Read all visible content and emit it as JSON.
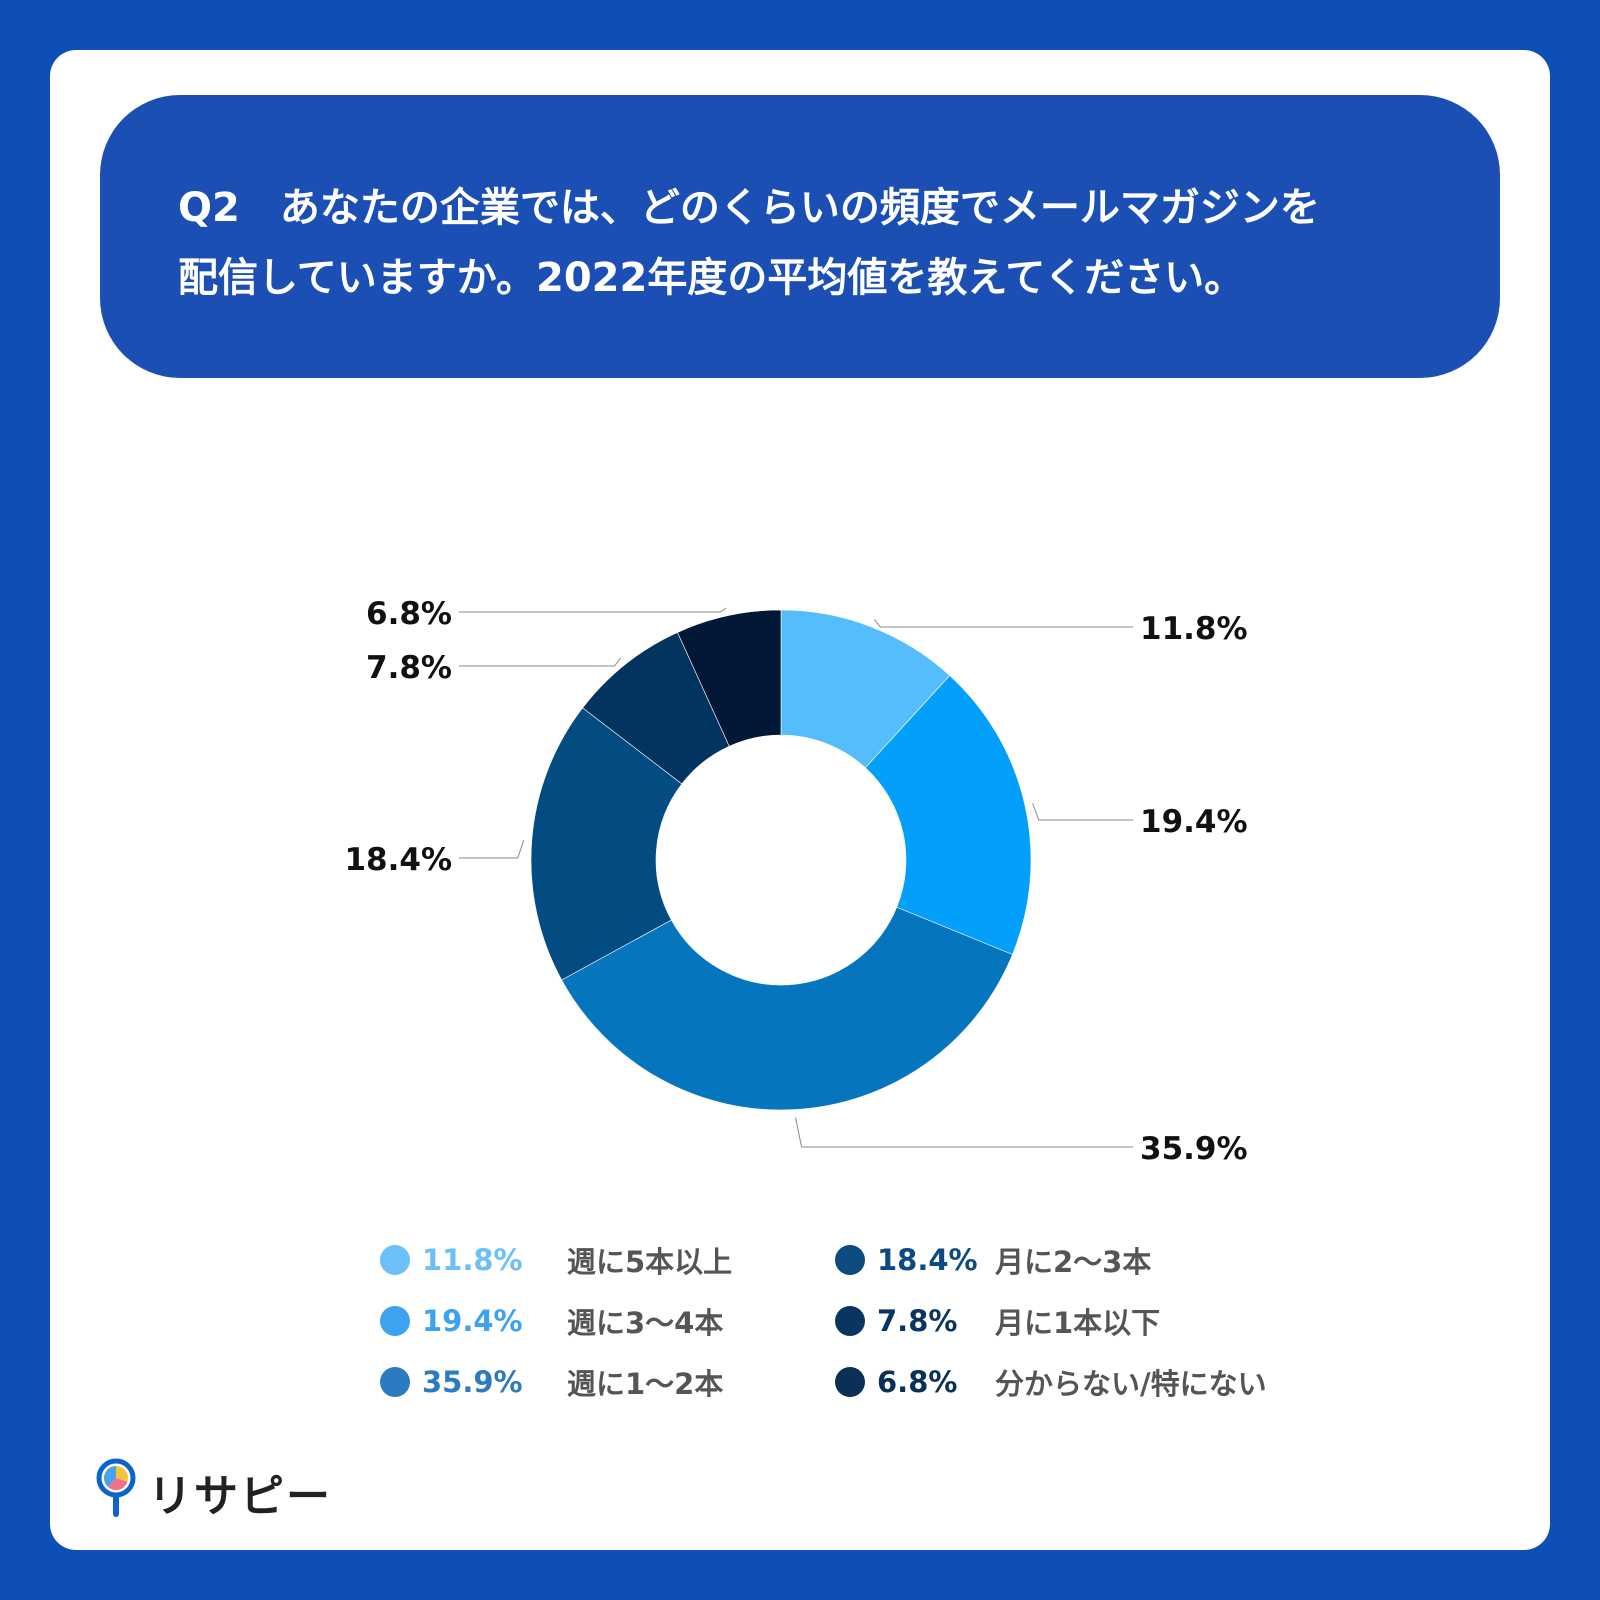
{
  "question": {
    "line1": "Q2　あなたの企業では、どのくらいの頻度でメールマガジンを",
    "line2": "配信していますか。2022年度の平均値を教えてください。"
  },
  "chart_data": {
    "type": "pie",
    "donut": true,
    "slices": [
      {
        "name": "週に5本以上",
        "value": 11.8,
        "label": "11.8%",
        "color": "#55bdfb"
      },
      {
        "name": "週に3〜4本",
        "value": 19.4,
        "label": "19.4%",
        "color": "#02a0fb"
      },
      {
        "name": "週に1〜2本",
        "value": 35.9,
        "label": "35.9%",
        "color": "#0575bd"
      },
      {
        "name": "月に2〜3本",
        "value": 18.4,
        "label": "18.4%",
        "color": "#034c82"
      },
      {
        "name": "月に1本以下",
        "value": 7.8,
        "label": "7.8%",
        "color": "#03335f"
      },
      {
        "name": "分からない/特にない",
        "value": 6.8,
        "label": "6.8%",
        "color": "#021836"
      }
    ]
  },
  "legend": [
    {
      "value": "11.8%",
      "label": "週に5本以上",
      "dot_color": "#6cc0f7",
      "value_color": "#6cc0f7"
    },
    {
      "value": "19.4%",
      "label": "週に3～4本",
      "dot_color": "#3da2f0",
      "value_color": "#3da2f0"
    },
    {
      "value": "35.9%",
      "label": "週に1～2本",
      "dot_color": "#2c7ac0",
      "value_color": "#2c7ac0"
    },
    {
      "value": "18.4%",
      "label": "月に2～3本",
      "dot_color": "#0c4a80",
      "value_color": "#0c4a80"
    },
    {
      "value": "7.8%",
      "label": "月に1本以下",
      "dot_color": "#0a3560",
      "value_color": "#0a3560"
    },
    {
      "value": "6.8%",
      "label": "分からない/特にない",
      "dot_color": "#0a3058",
      "value_color": "#0a3058"
    }
  ],
  "logo": {
    "text": "リサピー",
    "icon": "magnifier-pie-icon"
  }
}
